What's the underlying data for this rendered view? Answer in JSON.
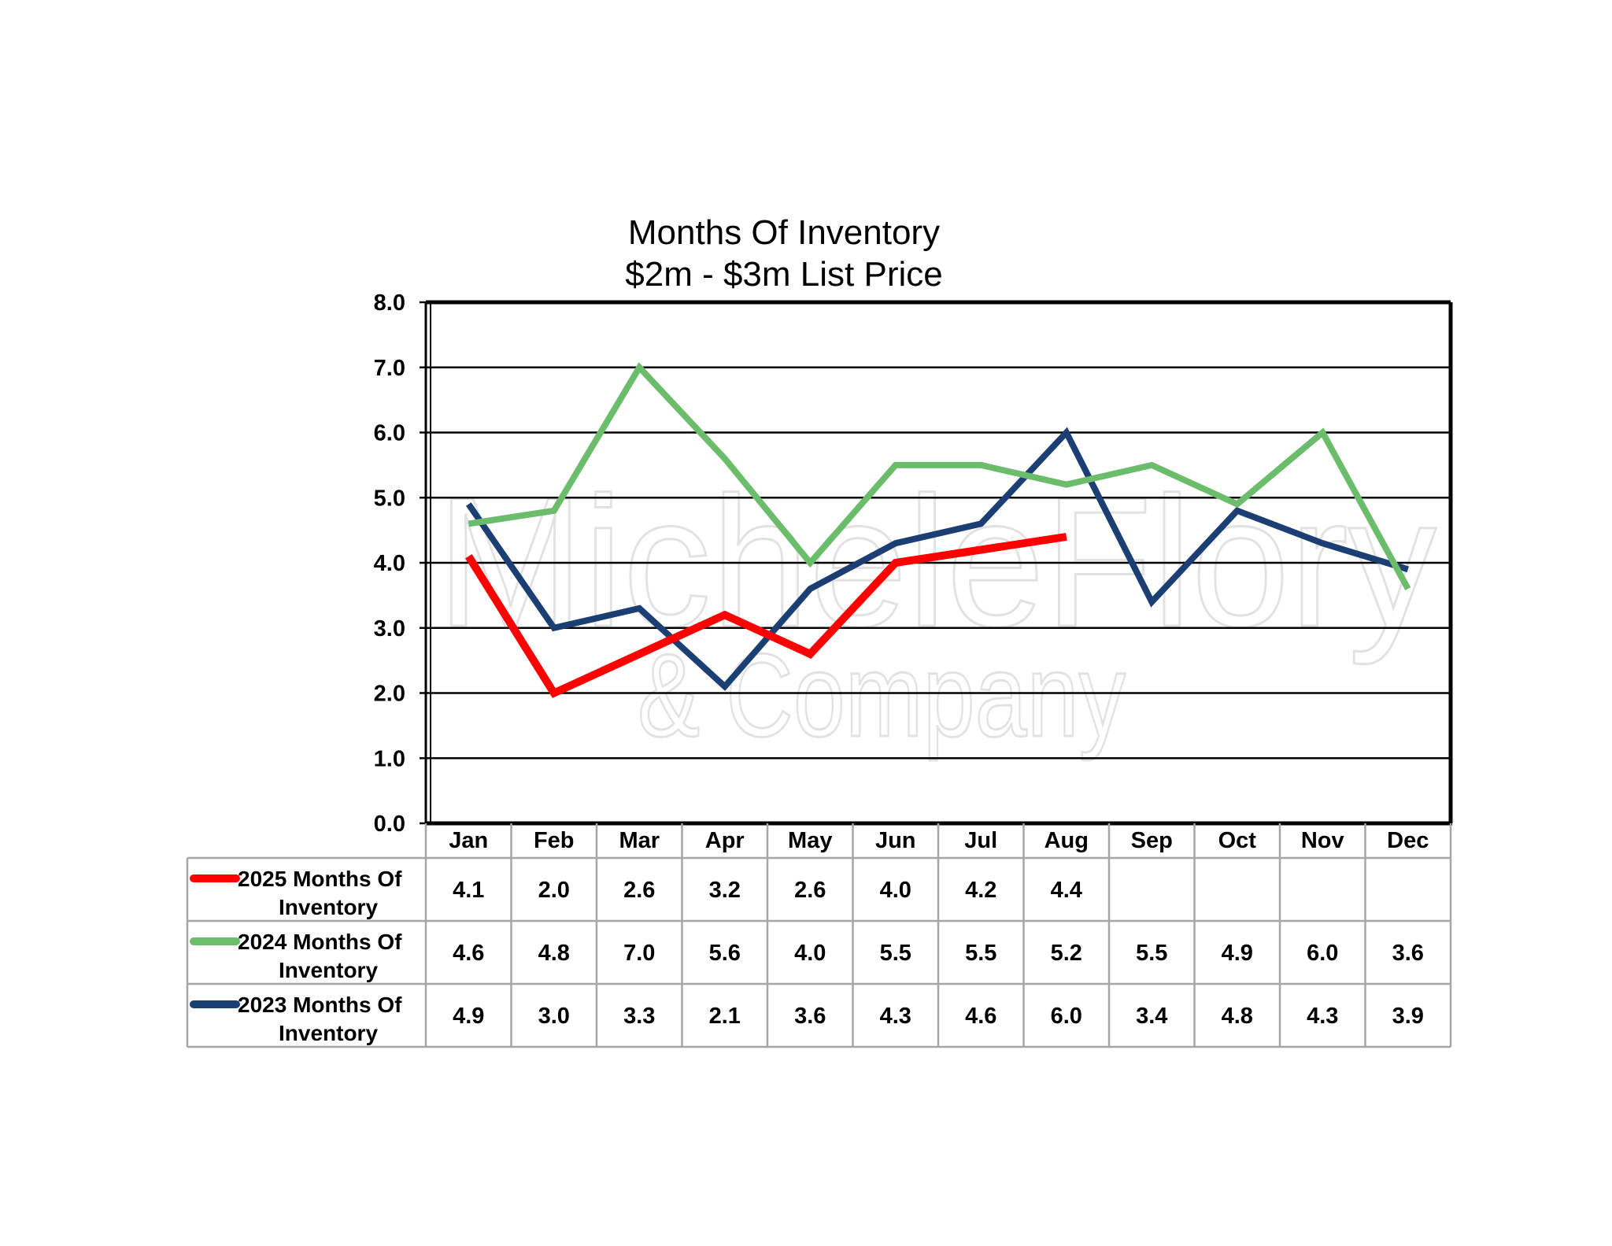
{
  "chart_data": {
    "type": "line",
    "title": [
      "Months Of Inventory",
      "$2m - $3m List Price"
    ],
    "categories": [
      "Jan",
      "Feb",
      "Mar",
      "Apr",
      "May",
      "Jun",
      "Jul",
      "Aug",
      "Sep",
      "Oct",
      "Nov",
      "Dec"
    ],
    "ylim": [
      0,
      8
    ],
    "yticks": [
      "0.0",
      "1.0",
      "2.0",
      "3.0",
      "4.0",
      "5.0",
      "6.0",
      "7.0",
      "8.0"
    ],
    "grid": true,
    "legend_placement": "data-table-left",
    "series": [
      {
        "name": [
          "2025 Months Of",
          "Inventory"
        ],
        "color": "#ff0000",
        "values": [
          4.1,
          2.0,
          2.6,
          3.2,
          2.6,
          4.0,
          4.2,
          4.4,
          null,
          null,
          null,
          null
        ],
        "labels": [
          "4.1",
          "2.0",
          "2.6",
          "3.2",
          "2.6",
          "4.0",
          "4.2",
          "4.4",
          "",
          "",
          "",
          ""
        ]
      },
      {
        "name": [
          "2024 Months Of",
          "Inventory"
        ],
        "color": "#6bbd6b",
        "values": [
          4.6,
          4.8,
          7.0,
          5.6,
          4.0,
          5.5,
          5.5,
          5.2,
          5.5,
          4.9,
          6.0,
          3.6
        ],
        "labels": [
          "4.6",
          "4.8",
          "7.0",
          "5.6",
          "4.0",
          "5.5",
          "5.5",
          "5.2",
          "5.5",
          "4.9",
          "6.0",
          "3.6"
        ]
      },
      {
        "name": [
          "2023 Months Of",
          "Inventory"
        ],
        "color": "#1b3f73",
        "values": [
          4.9,
          3.0,
          3.3,
          2.1,
          3.6,
          4.3,
          4.6,
          6.0,
          3.4,
          4.8,
          4.3,
          3.9
        ],
        "labels": [
          "4.9",
          "3.0",
          "3.3",
          "2.1",
          "3.6",
          "4.3",
          "4.6",
          "6.0",
          "3.4",
          "4.8",
          "4.3",
          "3.9"
        ]
      }
    ],
    "watermark": [
      "MicheleFlory",
      "& Company"
    ]
  }
}
